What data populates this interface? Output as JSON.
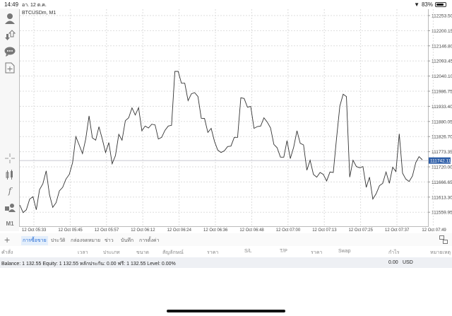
{
  "status_bar": {
    "time": "14:49",
    "date": "อา. 12 ต.ค.",
    "battery": "83%",
    "battery_level": 0.83
  },
  "chart_header": {
    "symbol": "BTCUSDm, M1"
  },
  "toolbar": {
    "timeframe": "M1"
  },
  "chart_data": {
    "type": "line",
    "title": "BTCUSDm, M1",
    "y_ticks": [
      "112253.50",
      "112200.15",
      "112146.80",
      "112093.45",
      "112040.10",
      "111986.75",
      "111933.40",
      "111880.05",
      "111826.70",
      "111773.35",
      "111720.00",
      "111666.65",
      "111613.30",
      "111559.95"
    ],
    "ylim": [
      111535,
      112275
    ],
    "x_ticks": [
      "12 Oct 05:33",
      "12 Oct 05:45",
      "12 Oct 05:57",
      "12 Oct 06:12",
      "12 Oct 06:24",
      "12 Oct 06:36",
      "12 Oct 06:48",
      "12 Oct 07:00",
      "12 Oct 07:13",
      "12 Oct 07:25",
      "12 Oct 07:37",
      "12 Oct 07:49"
    ],
    "current_price": "111742.11",
    "current_price_value": 111742.11,
    "grid": true,
    "series": [
      {
        "name": "BTCUSDm close",
        "values": [
          111585.4,
          111558.8,
          111568.8,
          111606.2,
          111614.5,
          111568.8,
          111639.4,
          111660.2,
          111705.9,
          111622.8,
          111577.1,
          111593.7,
          111635.3,
          111647.7,
          111676.8,
          111693.4,
          111735.0,
          111826.4,
          111797.3,
          111766.6,
          111818.1,
          111899.5,
          111822.2,
          111813.9,
          111861.3,
          111818.1,
          111770.7,
          111805.6,
          111730.8,
          111759.9,
          111834.7,
          111813.9,
          111882.9,
          111892.9,
          111927.8,
          111902.8,
          111928.6,
          111847.2,
          111863.8,
          111857.1,
          111870.4,
          111867.9,
          111818.1,
          111823.9,
          111848.8,
          111863.8,
          111866.3,
          112056.6,
          112056.6,
          112015.0,
          112015.0,
          111953.5,
          111977.6,
          111981.8,
          111967.7,
          111891.2,
          111890.4,
          111841.3,
          111855.5,
          111809.8,
          111779.0,
          111770.7,
          111776.5,
          111791.5,
          111793.1,
          111823.9,
          111823.9,
          111963.5,
          111961.0,
          111930.3,
          111932.8,
          111855.5,
          111862.1,
          111863.8,
          111892.9,
          111877.9,
          111857.0,
          111799.0,
          111787.3,
          111754.1,
          111754.1,
          111812.3,
          111749.1,
          111789.0,
          111847.2,
          111803.1,
          111797.3,
          111708.4,
          111743.3,
          111693.4,
          111683.5,
          111700.1,
          111693.4,
          111670.2,
          111701.7,
          111700.1,
          111820.0,
          111934.4,
          111976.0,
          111967.7,
          111683.5,
          111743.3,
          111720.9,
          111716.7,
          111720.9,
          111647.7,
          111683.5,
          111606.2,
          111625.3,
          111653.5,
          111661.9,
          111701.7,
          111661.9,
          111718.4,
          111703.4,
          111836.4,
          111697.6,
          111676.8,
          111668.5,
          111687.6,
          111735.0,
          111755.8,
          111745.0
        ]
      }
    ]
  },
  "tabs": [
    {
      "label": "การซื้อขาย",
      "active": true
    },
    {
      "label": "ประวัติ"
    },
    {
      "label": "กล่องจดหมาย"
    },
    {
      "label": "ข่าว"
    },
    {
      "label": "บันทึก"
    },
    {
      "label": "การตั้งค่า"
    }
  ],
  "columns": [
    "คำสั่ง",
    "เวลา",
    "ประเภท",
    "ขนาด",
    "สัญลักษณ์",
    "ราคา",
    "S/L",
    "T/P",
    "ราคา",
    "Swap",
    "กำไร",
    "หมายเหตุ"
  ],
  "account": {
    "summary": "Balance: 1 132.55 Equity: 1 132.55 หลักประกัน: 0.00 ฟรี: 1 132.55 Level: 0.00%",
    "profit": "0.00",
    "currency": "USD"
  }
}
